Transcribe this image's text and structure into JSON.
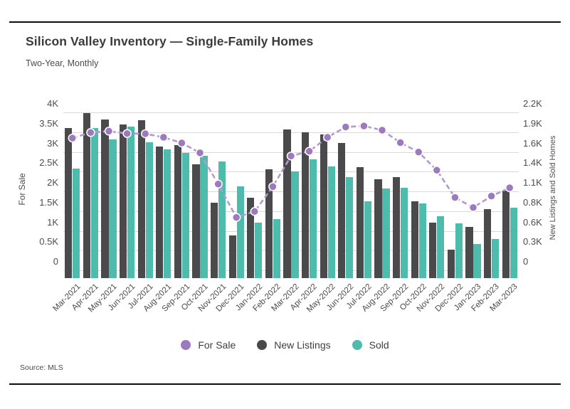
{
  "header": {
    "title": "Silicon Valley Inventory — Single-Family Homes",
    "subtitle": "Two-Year, Monthly"
  },
  "source": "Source: MLS",
  "colors": {
    "background": "#ffffff",
    "rule": "#0d0d0d",
    "gridline": "#d9d9d9",
    "for_sale_dot": "#9d7abe",
    "for_sale_line": "#b29ad2",
    "new_listings_bar": "#4a4a4c",
    "sold_bar": "#4dbcac"
  },
  "chart_data": {
    "type": "bar",
    "title": "Silicon Valley Inventory — Single-Family Homes",
    "subtitle": "Two-Year, Monthly",
    "grid": true,
    "legend_position": "bottom",
    "categories": [
      "Mar-2021",
      "Apr-2021",
      "May-2021",
      "Jun-2021",
      "Jul-2021",
      "Aug-2021",
      "Sep-2021",
      "Oct-2021",
      "Nov-2021",
      "Dec-2021",
      "Jan-2022",
      "Feb-2022",
      "Mar-2022",
      "Apr-2022",
      "May-2022",
      "Jun-2022",
      "Jul-2022",
      "Aug-2022",
      "Sep-2022",
      "Oct-2022",
      "Nov-2022",
      "Dec-2022",
      "Jan-2023",
      "Feb-2023",
      "Mar-2023"
    ],
    "series": [
      {
        "name": "For Sale",
        "type": "line",
        "axis": "left",
        "color": "#9d7abe",
        "line_color": "#b29ad2",
        "dashed": true,
        "values": [
          3350,
          3490,
          3525,
          3465,
          3460,
          3370,
          3225,
          2975,
          2185,
          1340,
          1490,
          2120,
          2895,
          3015,
          3370,
          3630,
          3655,
          3550,
          3235,
          2995,
          2535,
          1845,
          1590,
          1880,
          2090
        ]
      },
      {
        "name": "New Listings",
        "type": "bar",
        "axis": "right",
        "color": "#4a4a4c",
        "values": [
          1980,
          2190,
          2100,
          2035,
          2090,
          1720,
          1745,
          1480,
          945,
          485,
          1015,
          1405,
          1960,
          1925,
          1895,
          1770,
          1440,
          1270,
          1300,
          965,
          660,
          290,
          600,
          850,
          1115
        ]
      },
      {
        "name": "Sold",
        "type": "bar",
        "axis": "right",
        "color": "#4dbcac",
        "values": [
          1420,
          1985,
          1825,
          2000,
          1780,
          1685,
          1635,
          1600,
          1520,
          1165,
          660,
          715,
          1380,
          1545,
          1445,
          1300,
          965,
          1140,
          1145,
          930,
          750,
          655,
          370,
          435,
          875
        ]
      }
    ],
    "left_axis": {
      "label": "For Sale",
      "range": [
        0,
        4000
      ],
      "tick_labels_top_to_bottom": [
        "4K",
        "3.5K",
        "3K",
        "2.5K",
        "2K",
        "1.5K",
        "1K",
        "0.5K",
        "0"
      ]
    },
    "right_axis": {
      "label": "New Listings and Sold Homes",
      "range": [
        0,
        2200
      ],
      "tick_labels_top_to_bottom": [
        "2.2K",
        "1.9K",
        "1.6K",
        "1.4K",
        "1.1K",
        "0.8K",
        "0.6K",
        "0.3K",
        "0"
      ]
    },
    "legend": [
      "For Sale",
      "New Listings",
      "Sold"
    ]
  }
}
